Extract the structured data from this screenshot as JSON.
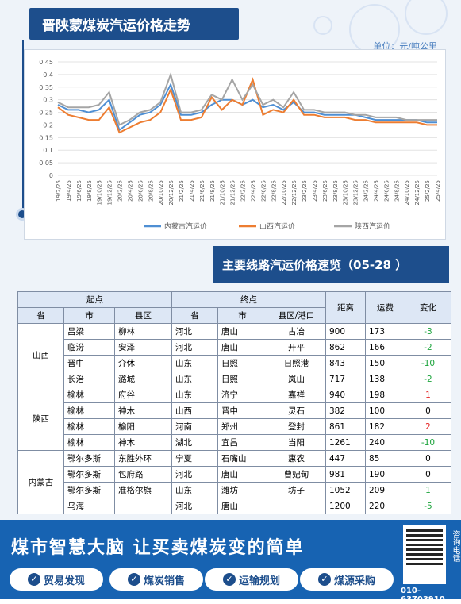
{
  "header": {
    "title": "晋陕蒙煤炭汽运价格走势",
    "unit": "单位：元/吨公里"
  },
  "chart_data": {
    "type": "line",
    "x": [
      "19/2/25",
      "19/4/25",
      "19/6/25",
      "19/8/25",
      "19/10/25",
      "19/12/25",
      "20/2/25",
      "20/4/25",
      "20/6/25",
      "20/8/25",
      "20/10/25",
      "20/12/25",
      "21/2/25",
      "21/4/25",
      "21/6/25",
      "21/8/25",
      "21/10/25",
      "21/12/25",
      "22/2/25",
      "22/4/25",
      "22/6/25",
      "22/8/25",
      "22/10/25",
      "22/12/25",
      "23/2/25",
      "23/4/25",
      "23/6/25",
      "23/8/25",
      "23/10/25",
      "23/12/25",
      "24/2/25",
      "24/4/25",
      "24/6/25",
      "24/8/25",
      "24/10/25",
      "24/12/25",
      "25/2/25",
      "25/4/25"
    ],
    "ylim": [
      0,
      0.45
    ],
    "yticks": [
      "0",
      "0.05",
      "0.1",
      "0.15",
      "0.2",
      "0.25",
      "0.3",
      "0.35",
      "0.4",
      "0.45"
    ],
    "series": [
      {
        "name": "内蒙古汽运价",
        "color": "#4f8fd3",
        "values": [
          0.28,
          0.26,
          0.26,
          0.25,
          0.26,
          0.3,
          0.18,
          0.21,
          0.24,
          0.25,
          0.28,
          0.36,
          0.24,
          0.24,
          0.25,
          0.28,
          0.3,
          0.3,
          0.28,
          0.3,
          0.27,
          0.28,
          0.26,
          0.29,
          0.25,
          0.25,
          0.24,
          0.24,
          0.24,
          0.24,
          0.23,
          0.22,
          0.22,
          0.22,
          0.22,
          0.22,
          0.21,
          0.21
        ]
      },
      {
        "name": "山西汽运价",
        "color": "#ed7d31",
        "values": [
          0.27,
          0.24,
          0.23,
          0.22,
          0.22,
          0.27,
          0.17,
          0.19,
          0.21,
          0.22,
          0.25,
          0.34,
          0.22,
          0.22,
          0.23,
          0.31,
          0.26,
          0.3,
          0.28,
          0.38,
          0.24,
          0.26,
          0.25,
          0.3,
          0.24,
          0.24,
          0.23,
          0.23,
          0.23,
          0.22,
          0.22,
          0.21,
          0.21,
          0.21,
          0.21,
          0.21,
          0.2,
          0.2
        ]
      },
      {
        "name": "陕西汽运价",
        "color": "#a5a5a5",
        "values": [
          0.29,
          0.27,
          0.27,
          0.27,
          0.28,
          0.33,
          0.2,
          0.22,
          0.25,
          0.26,
          0.29,
          0.4,
          0.25,
          0.25,
          0.26,
          0.32,
          0.3,
          0.38,
          0.3,
          0.36,
          0.28,
          0.3,
          0.27,
          0.33,
          0.26,
          0.26,
          0.25,
          0.25,
          0.25,
          0.24,
          0.24,
          0.23,
          0.23,
          0.23,
          0.22,
          0.22,
          0.22,
          0.22
        ]
      }
    ]
  },
  "section": {
    "title": "主要线路汽运价格速览（05-28 ）"
  },
  "table": {
    "group_start": "起点",
    "group_end": "终点",
    "h_dist": "距离",
    "h_fee": "运费",
    "h_change": "变化",
    "h_prov": "省",
    "h_city": "市",
    "h_county": "县区",
    "h_county_port": "县区/港口",
    "rows": [
      {
        "p": "山西",
        "sc": "吕梁",
        "sx": "柳林",
        "ep": "河北",
        "ec": "唐山",
        "ex": "古冶",
        "d": "900",
        "f": "173",
        "c": "-3",
        "cc": "g"
      },
      {
        "p": "",
        "sc": "临汾",
        "sx": "安泽",
        "ep": "河北",
        "ec": "唐山",
        "ex": "开平",
        "d": "862",
        "f": "166",
        "c": "-2",
        "cc": "g"
      },
      {
        "p": "",
        "sc": "晋中",
        "sx": "介休",
        "ep": "山东",
        "ec": "日照",
        "ex": "日照港",
        "d": "843",
        "f": "150",
        "c": "-10",
        "cc": "g"
      },
      {
        "p": "",
        "sc": "长治",
        "sx": "潞城",
        "ep": "山东",
        "ec": "日照",
        "ex": "岚山",
        "d": "717",
        "f": "138",
        "c": "-2",
        "cc": "g"
      },
      {
        "p": "陕西",
        "sc": "榆林",
        "sx": "府谷",
        "ep": "山东",
        "ec": "济宁",
        "ex": "嘉祥",
        "d": "940",
        "f": "198",
        "c": "1",
        "cc": "r"
      },
      {
        "p": "",
        "sc": "榆林",
        "sx": "神木",
        "ep": "山西",
        "ec": "晋中",
        "ex": "灵石",
        "d": "382",
        "f": "100",
        "c": "0",
        "cc": "k"
      },
      {
        "p": "",
        "sc": "榆林",
        "sx": "榆阳",
        "ep": "河南",
        "ec": "郑州",
        "ex": "登封",
        "d": "861",
        "f": "182",
        "c": "2",
        "cc": "r"
      },
      {
        "p": "",
        "sc": "榆林",
        "sx": "神木",
        "ep": "湖北",
        "ec": "宜昌",
        "ex": "当阳",
        "d": "1261",
        "f": "240",
        "c": "-10",
        "cc": "g"
      },
      {
        "p": "内蒙古",
        "sc": "鄂尔多斯",
        "sx": "东胜外环",
        "ep": "宁夏",
        "ec": "石嘴山",
        "ex": "惠农",
        "d": "447",
        "f": "85",
        "c": "0",
        "cc": "k"
      },
      {
        "p": "",
        "sc": "鄂尔多斯",
        "sx": "包府路",
        "ep": "河北",
        "ec": "唐山",
        "ex": "曹妃甸",
        "d": "981",
        "f": "190",
        "c": "0",
        "cc": "k"
      },
      {
        "p": "",
        "sc": "鄂尔多斯",
        "sx": "准格尔旗",
        "ep": "山东",
        "ec": "潍坊",
        "ex": "坊子",
        "d": "1052",
        "f": "209",
        "c": "1",
        "cc": "g"
      },
      {
        "p": "",
        "sc": "乌海",
        "sx": "",
        "ep": "河北",
        "ec": "唐山",
        "ex": "",
        "d": "1200",
        "f": "220",
        "c": "-5",
        "cc": "g"
      }
    ]
  },
  "banner": {
    "title": "煤市智慧大脑  让买卖煤炭变的简单",
    "buttons": [
      "贸易发现",
      "煤炭销售",
      "运输规划",
      "煤源采购"
    ],
    "qr_label": "咨询电话",
    "phone": "010-63703910"
  }
}
